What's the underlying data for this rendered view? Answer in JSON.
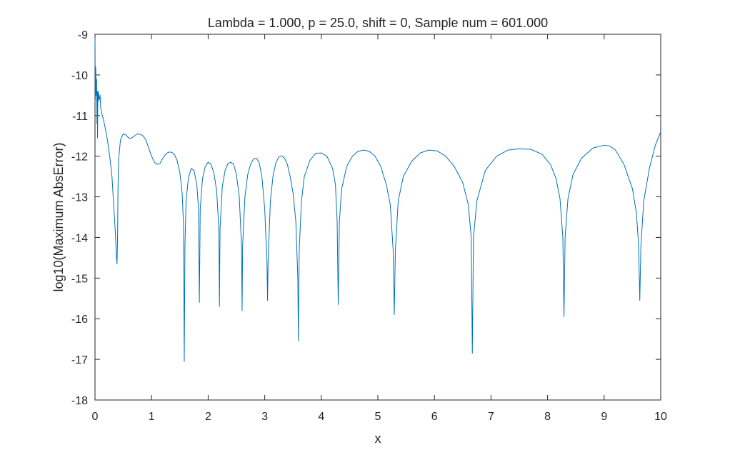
{
  "chart_data": {
    "type": "line",
    "title": "Lambda = 1.000, p = 25.0, shift = 0, Sample num = 601.000",
    "xlabel": "x",
    "ylabel": "log10(Maximum AbsError)",
    "xlim": [
      0,
      10
    ],
    "ylim": [
      -18,
      -9
    ],
    "xticks": [
      "0",
      "1",
      "2",
      "3",
      "4",
      "5",
      "6",
      "7",
      "8",
      "9",
      "10"
    ],
    "yticks": [
      "-9",
      "-10",
      "-11",
      "-12",
      "-13",
      "-14",
      "-15",
      "-16",
      "-17",
      "-18"
    ],
    "grid": false,
    "legend": "none",
    "line_color": "#0072BD",
    "series": [
      {
        "x": [
          0,
          0.005,
          0.012,
          0.02,
          0.028,
          0.035,
          0.04,
          0.045,
          0.05,
          0.055,
          0.06,
          0.065,
          0.07,
          0.08,
          0.09,
          0.1,
          0.12,
          0.15,
          0.18,
          0.22,
          0.26,
          0.3,
          0.33,
          0.36,
          0.38,
          0.39,
          0.4,
          0.405,
          0.41,
          0.42,
          0.45,
          0.5,
          0.55,
          0.6,
          0.65,
          0.7,
          0.75,
          0.8,
          0.85,
          0.9,
          0.95,
          1.0,
          1.05,
          1.1,
          1.15,
          1.2,
          1.25,
          1.3,
          1.35,
          1.4,
          1.45,
          1.5,
          1.54,
          1.565,
          1.578,
          1.59,
          1.61,
          1.65,
          1.7,
          1.75,
          1.8,
          1.83,
          1.845,
          1.86,
          1.9,
          1.95,
          2.0,
          2.05,
          2.1,
          2.15,
          2.19,
          2.2,
          2.21,
          2.25,
          2.3,
          2.35,
          2.4,
          2.45,
          2.5,
          2.55,
          2.59,
          2.6,
          2.61,
          2.65,
          2.7,
          2.75,
          2.8,
          2.85,
          2.9,
          2.95,
          3.0,
          3.04,
          3.05,
          3.06,
          3.1,
          3.15,
          3.2,
          3.25,
          3.3,
          3.35,
          3.4,
          3.45,
          3.5,
          3.55,
          3.585,
          3.595,
          3.61,
          3.65,
          3.7,
          3.8,
          3.9,
          4.0,
          4.1,
          4.2,
          4.25,
          4.28,
          4.3,
          4.32,
          4.36,
          4.45,
          4.55,
          4.65,
          4.75,
          4.85,
          4.95,
          5.05,
          5.15,
          5.22,
          5.27,
          5.29,
          5.31,
          5.36,
          5.45,
          5.6,
          5.75,
          5.9,
          6.05,
          6.2,
          6.35,
          6.5,
          6.6,
          6.65,
          6.67,
          6.69,
          6.75,
          6.9,
          7.1,
          7.3,
          7.5,
          7.7,
          7.9,
          8.05,
          8.15,
          8.22,
          8.27,
          8.29,
          8.31,
          8.36,
          8.45,
          8.6,
          8.8,
          9.0,
          9.1,
          9.2,
          9.35,
          9.5,
          9.57,
          9.61,
          9.63,
          9.65,
          9.7,
          9.8,
          9.9,
          10.0
        ],
        "y": [
          -9.1,
          -10.6,
          -9.8,
          -10.5,
          -10.1,
          -11.2,
          -10.4,
          -11.55,
          -10.5,
          -10.4,
          -10.65,
          -10.45,
          -10.55,
          -10.6,
          -10.5,
          -10.8,
          -10.95,
          -11.1,
          -11.3,
          -11.6,
          -12.0,
          -12.5,
          -13.2,
          -13.9,
          -14.5,
          -14.65,
          -13.9,
          -13.0,
          -12.5,
          -12.05,
          -11.6,
          -11.45,
          -11.48,
          -11.56,
          -11.55,
          -11.5,
          -11.45,
          -11.46,
          -11.5,
          -11.6,
          -11.8,
          -12.0,
          -12.15,
          -12.2,
          -12.18,
          -12.05,
          -11.95,
          -11.9,
          -11.9,
          -11.95,
          -12.1,
          -12.4,
          -12.9,
          -13.7,
          -17.05,
          -14.2,
          -13.1,
          -12.55,
          -12.3,
          -12.35,
          -12.7,
          -13.3,
          -15.6,
          -13.3,
          -12.55,
          -12.25,
          -12.15,
          -12.2,
          -12.4,
          -12.85,
          -13.8,
          -15.7,
          -13.8,
          -12.75,
          -12.35,
          -12.18,
          -12.15,
          -12.2,
          -12.45,
          -13.0,
          -14.2,
          -15.8,
          -14.2,
          -13.0,
          -12.45,
          -12.2,
          -12.07,
          -12.05,
          -12.15,
          -12.5,
          -13.3,
          -14.6,
          -15.55,
          -14.6,
          -13.1,
          -12.45,
          -12.15,
          -12.02,
          -11.99,
          -12.05,
          -12.2,
          -12.5,
          -12.9,
          -13.6,
          -15.0,
          -16.55,
          -14.3,
          -13.1,
          -12.5,
          -12.1,
          -11.93,
          -11.92,
          -12.0,
          -12.3,
          -12.7,
          -13.6,
          -15.65,
          -13.6,
          -12.8,
          -12.25,
          -12.0,
          -11.88,
          -11.85,
          -11.88,
          -12.0,
          -12.25,
          -12.7,
          -13.2,
          -14.3,
          -15.9,
          -14.3,
          -13.1,
          -12.5,
          -12.12,
          -11.92,
          -11.85,
          -11.87,
          -12.0,
          -12.25,
          -12.65,
          -13.2,
          -14.0,
          -16.85,
          -14.0,
          -13.1,
          -12.35,
          -12.0,
          -11.85,
          -11.82,
          -11.83,
          -11.95,
          -12.2,
          -12.55,
          -13.05,
          -14.0,
          -15.95,
          -14.0,
          -13.05,
          -12.45,
          -12.05,
          -11.8,
          -11.73,
          -11.75,
          -11.85,
          -12.2,
          -12.8,
          -13.4,
          -14.2,
          -15.55,
          -14.2,
          -13.1,
          -12.3,
          -11.75,
          -11.4
        ]
      }
    ]
  }
}
